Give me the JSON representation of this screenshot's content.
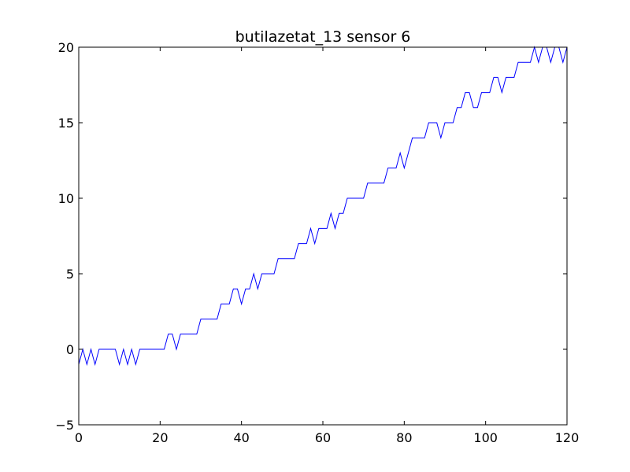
{
  "chart_data": {
    "type": "line",
    "title": "butilazetat_13 sensor 6",
    "xlabel": "",
    "ylabel": "",
    "xlim": [
      0,
      120
    ],
    "ylim": [
      -5,
      20
    ],
    "xticks": [
      0,
      20,
      40,
      60,
      80,
      100,
      120
    ],
    "yticks": [
      -5,
      0,
      5,
      10,
      15,
      20
    ],
    "grid": false,
    "colors": {
      "line": "#0000ff",
      "axes": "#000000"
    },
    "series": [
      {
        "x": [
          0,
          1,
          2,
          3,
          4,
          5,
          6,
          7,
          8,
          9,
          10,
          11,
          12,
          13,
          14,
          15,
          16,
          17,
          18,
          19,
          20,
          21,
          22,
          23,
          24,
          25,
          26,
          27,
          28,
          29,
          30,
          31,
          32,
          33,
          34,
          35,
          36,
          37,
          38,
          39,
          40,
          41,
          42,
          43,
          44,
          45,
          46,
          47,
          48,
          49,
          50,
          51,
          52,
          53,
          54,
          55,
          56,
          57,
          58,
          59,
          60,
          61,
          62,
          63,
          64,
          65,
          66,
          67,
          68,
          69,
          70,
          71,
          72,
          73,
          74,
          75,
          76,
          77,
          78,
          79,
          80,
          81,
          82,
          83,
          84,
          85,
          86,
          87,
          88,
          89,
          90,
          91,
          92,
          93,
          94,
          95,
          96,
          97,
          98,
          99,
          100,
          101,
          102,
          103,
          104,
          105,
          106,
          107,
          108,
          109,
          110,
          111,
          112,
          113,
          114,
          115,
          116,
          117,
          118,
          119,
          120
        ],
        "y": [
          -1,
          0,
          -1,
          0,
          -1,
          0,
          0,
          0,
          0,
          0,
          -1,
          0,
          -1,
          0,
          -1,
          0,
          0,
          0,
          0,
          0,
          0,
          0,
          1,
          1,
          0,
          1,
          1,
          1,
          1,
          1,
          2,
          2,
          2,
          2,
          2,
          3,
          3,
          3,
          4,
          4,
          3,
          4,
          4,
          5,
          4,
          5,
          5,
          5,
          5,
          6,
          6,
          6,
          6,
          6,
          7,
          7,
          7,
          8,
          7,
          8,
          8,
          8,
          9,
          8,
          9,
          9,
          10,
          10,
          10,
          10,
          10,
          11,
          11,
          11,
          11,
          11,
          12,
          12,
          12,
          13,
          12,
          13,
          14,
          14,
          14,
          14,
          15,
          15,
          15,
          14,
          15,
          15,
          15,
          16,
          16,
          17,
          17,
          16,
          16,
          17,
          17,
          17,
          18,
          18,
          17,
          18,
          18,
          18,
          19,
          19,
          19,
          19,
          20,
          19,
          20,
          20,
          19,
          20,
          20,
          19,
          20
        ]
      }
    ]
  }
}
